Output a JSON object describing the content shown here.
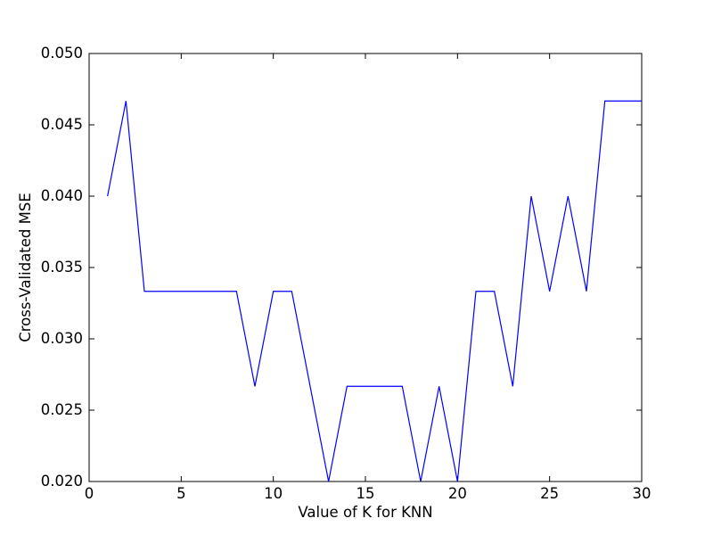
{
  "figure": {
    "background": "#ffffff",
    "axis_color": "#000000"
  },
  "chart_data": {
    "type": "line",
    "title": "",
    "xlabel": "Value of K for KNN",
    "ylabel": "Cross-Validated MSE",
    "grid": false,
    "legend": null,
    "xlim": [
      0,
      30
    ],
    "ylim": [
      0.02,
      0.05
    ],
    "x_ticks": [
      0,
      5,
      10,
      15,
      20,
      25,
      30
    ],
    "x_tick_labels": [
      "0",
      "5",
      "10",
      "15",
      "20",
      "25",
      "30"
    ],
    "y_ticks": [
      0.02,
      0.025,
      0.03,
      0.035,
      0.04,
      0.045,
      0.05
    ],
    "y_tick_labels": [
      "0.020",
      "0.025",
      "0.030",
      "0.035",
      "0.040",
      "0.045",
      "0.050"
    ],
    "x": [
      1,
      2,
      3,
      4,
      5,
      6,
      7,
      8,
      9,
      10,
      11,
      12,
      13,
      14,
      15,
      16,
      17,
      18,
      19,
      20,
      21,
      22,
      23,
      24,
      25,
      26,
      27,
      28,
      29,
      30
    ],
    "series": [
      {
        "name": "Cross-Validated MSE",
        "color": "#0000ff",
        "values": [
          0.04,
          0.04667,
          0.03333,
          0.03333,
          0.03333,
          0.03333,
          0.03333,
          0.03333,
          0.02667,
          0.03333,
          0.03333,
          0.02667,
          0.02,
          0.02667,
          0.02667,
          0.02667,
          0.02667,
          0.02,
          0.02667,
          0.02,
          0.03333,
          0.03333,
          0.02667,
          0.04,
          0.03333,
          0.04,
          0.03333,
          0.04667,
          0.04667,
          0.04667
        ]
      }
    ]
  }
}
